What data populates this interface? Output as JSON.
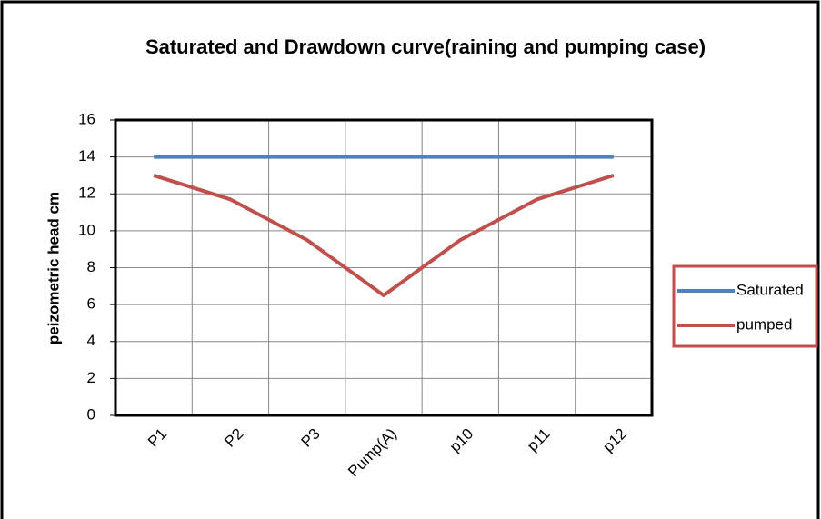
{
  "chart_data": {
    "type": "line",
    "title": "Saturated and Drawdown curve(raining and pumping case)",
    "y_label": "peizometric head cm",
    "categories": [
      "P1",
      "P2",
      "P3",
      "Pump(A)",
      "p10",
      "p11",
      "p12"
    ],
    "series": [
      {
        "name": "Saturated",
        "color": "#4f81bd",
        "values": [
          14,
          14,
          14,
          14,
          14,
          14,
          14
        ]
      },
      {
        "name": "pumped",
        "color": "#c0504d",
        "values": [
          13,
          11.7,
          9.5,
          6.5,
          9.5,
          11.7,
          13
        ]
      }
    ],
    "ylim": [
      0,
      16
    ],
    "yticks": [
      0,
      2,
      4,
      6,
      8,
      10,
      12,
      14,
      16
    ],
    "grid": true,
    "legend": "right"
  }
}
